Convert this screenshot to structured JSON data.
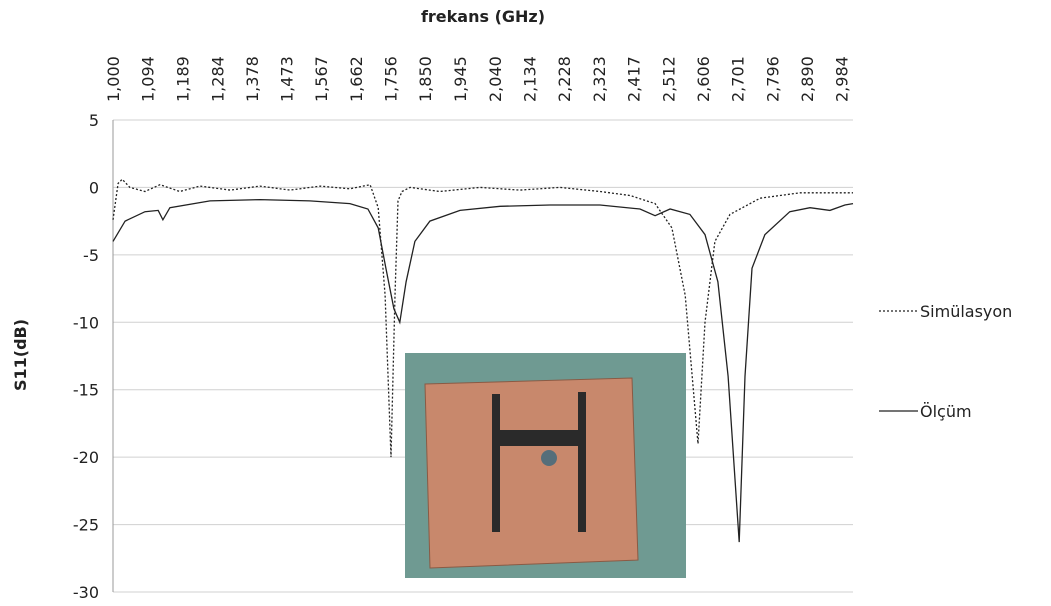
{
  "chart_data": {
    "type": "line",
    "title": "frekans (GHz)",
    "y_label": "S11(dB)",
    "xlim": [
      1.0,
      3.015
    ],
    "xticks": [
      {
        "value": 1.0,
        "label": "1,000"
      },
      {
        "value": 1.094,
        "label": "1,094"
      },
      {
        "value": 1.189,
        "label": "1,189"
      },
      {
        "value": 1.284,
        "label": "1,284"
      },
      {
        "value": 1.378,
        "label": "1,378"
      },
      {
        "value": 1.473,
        "label": "1,473"
      },
      {
        "value": 1.567,
        "label": "1,567"
      },
      {
        "value": 1.662,
        "label": "1,662"
      },
      {
        "value": 1.756,
        "label": "1,756"
      },
      {
        "value": 1.85,
        "label": "1,850"
      },
      {
        "value": 1.945,
        "label": "1,945"
      },
      {
        "value": 2.04,
        "label": "2,040"
      },
      {
        "value": 2.134,
        "label": "2,134"
      },
      {
        "value": 2.228,
        "label": "2,228"
      },
      {
        "value": 2.323,
        "label": "2,323"
      },
      {
        "value": 2.417,
        "label": "2,417"
      },
      {
        "value": 2.512,
        "label": "2,512"
      },
      {
        "value": 2.606,
        "label": "2,606"
      },
      {
        "value": 2.701,
        "label": "2,701"
      },
      {
        "value": 2.796,
        "label": "2,796"
      },
      {
        "value": 2.89,
        "label": "2,890"
      },
      {
        "value": 2.984,
        "label": "2,984"
      }
    ],
    "ylim": [
      -30,
      5
    ],
    "yticks": [
      5,
      0,
      -5,
      -10,
      -15,
      -20,
      -25,
      -30
    ],
    "grid": true,
    "legend": "right",
    "series": [
      {
        "name": "Simülasyon",
        "color": "#222222",
        "dash": "dotted",
        "x": [
          1.0,
          1.014,
          1.025,
          1.046,
          1.087,
          1.128,
          1.182,
          1.237,
          1.319,
          1.4,
          1.482,
          1.564,
          1.645,
          1.7,
          1.722,
          1.741,
          1.757,
          1.768,
          1.776,
          1.787,
          1.809,
          1.89,
          1.999,
          2.108,
          2.217,
          2.326,
          2.408,
          2.476,
          2.522,
          2.558,
          2.593,
          2.612,
          2.639,
          2.68,
          2.762,
          2.871,
          3.015
        ],
        "values": [
          -2.4,
          0.3,
          0.6,
          0.0,
          -0.3,
          0.2,
          -0.3,
          0.1,
          -0.2,
          0.1,
          -0.2,
          0.1,
          -0.1,
          0.2,
          -1.5,
          -8,
          -20,
          -8,
          -1,
          -0.3,
          0,
          -0.3,
          0,
          -0.2,
          0,
          -0.3,
          -0.6,
          -1.2,
          -3,
          -8,
          -19,
          -10,
          -4,
          -2,
          -0.8,
          -0.4,
          -0.4
        ]
      },
      {
        "name": "Ölçüm",
        "color": "#222222",
        "dash": "solid",
        "x": [
          1.0,
          1.033,
          1.087,
          1.123,
          1.136,
          1.155,
          1.264,
          1.4,
          1.536,
          1.645,
          1.694,
          1.722,
          1.743,
          1.765,
          1.781,
          1.798,
          1.822,
          1.863,
          1.945,
          2.054,
          2.19,
          2.326,
          2.435,
          2.476,
          2.517,
          2.571,
          2.612,
          2.647,
          2.675,
          2.705,
          2.721,
          2.74,
          2.775,
          2.843,
          2.898,
          2.952,
          2.993,
          3.015
        ],
        "values": [
          -4,
          -2.5,
          -1.8,
          -1.7,
          -2.4,
          -1.5,
          -1.0,
          -0.9,
          -1.0,
          -1.2,
          -1.6,
          -3,
          -6,
          -9,
          -10,
          -7,
          -4,
          -2.5,
          -1.7,
          -1.4,
          -1.3,
          -1.3,
          -1.6,
          -2.1,
          -1.6,
          -2,
          -3.5,
          -7,
          -14,
          -26.3,
          -14,
          -6,
          -3.5,
          -1.8,
          -1.5,
          -1.7,
          -1.3,
          -1.2
        ]
      }
    ]
  }
}
